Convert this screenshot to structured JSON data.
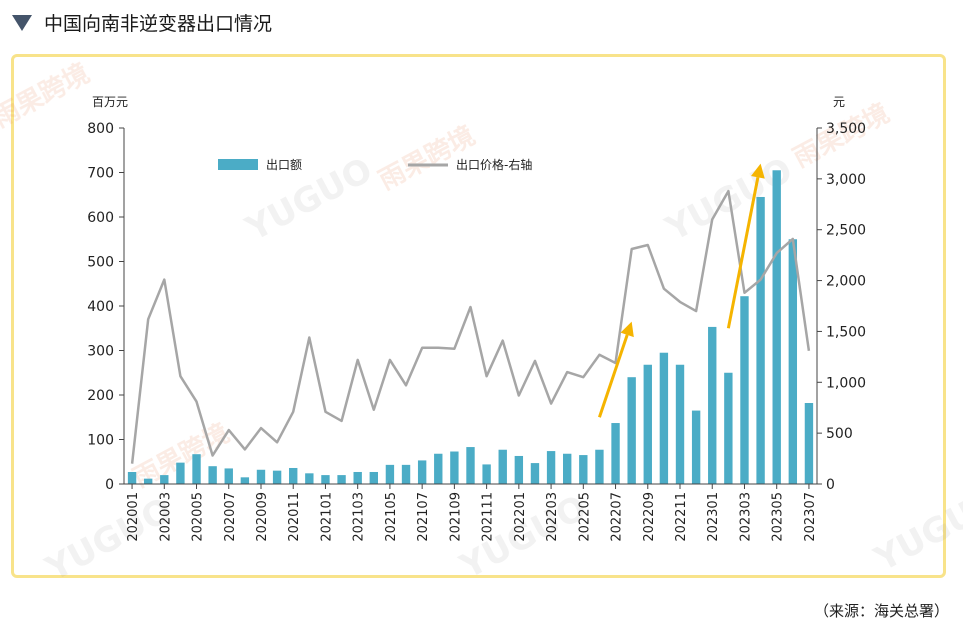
{
  "header": {
    "title": "中国向南非逆变器出口情况"
  },
  "source": "（来源：海关总署）",
  "watermark": {
    "latin": "YUGUO",
    "cn": "雨果跨境"
  },
  "colors": {
    "bar": "#4bacc6",
    "line": "#a6a6a6",
    "arrow": "#f5b400",
    "frame": "#f8e38a"
  },
  "chart_data": {
    "type": "bar+line",
    "left_axis_unit": "百万元",
    "right_axis_unit": "元",
    "left_ylim": [
      0,
      800
    ],
    "right_ylim": [
      0,
      3500
    ],
    "left_ticks": [
      0,
      100,
      200,
      300,
      400,
      500,
      600,
      700,
      800
    ],
    "left_tick_labels": [
      "0",
      "100",
      "200",
      "300",
      "400",
      "500",
      "600",
      "700",
      "800"
    ],
    "right_ticks": [
      0,
      500,
      1000,
      1500,
      2000,
      2500,
      3000,
      3500
    ],
    "right_tick_labels": [
      "0",
      "500",
      "1,000",
      "1,500",
      "2,000",
      "2,500",
      "3,000",
      "3,500"
    ],
    "categories": [
      "202001",
      "202002",
      "202003",
      "202004",
      "202005",
      "202006",
      "202007",
      "202008",
      "202009",
      "202010",
      "202011",
      "202012",
      "202101",
      "202102",
      "202103",
      "202104",
      "202105",
      "202106",
      "202107",
      "202108",
      "202109",
      "202110",
      "202111",
      "202112",
      "202201",
      "202202",
      "202203",
      "202204",
      "202205",
      "202206",
      "202207",
      "202208",
      "202209",
      "202210",
      "202211",
      "202212",
      "202301",
      "202302",
      "202303",
      "202304",
      "202305",
      "202306",
      "202307"
    ],
    "x_tick_labels": [
      "202001",
      "202003",
      "202005",
      "202007",
      "202009",
      "202011",
      "202101",
      "202103",
      "202105",
      "202107",
      "202109",
      "202111",
      "202201",
      "202203",
      "202205",
      "202207",
      "202209",
      "202211",
      "202301",
      "202303",
      "202305",
      "202307"
    ],
    "legend": [
      "出口额",
      "出口价格-右轴"
    ],
    "series": [
      {
        "name": "出口额",
        "type": "bar",
        "axis": "left",
        "values": [
          27,
          12,
          20,
          48,
          67,
          40,
          35,
          15,
          32,
          30,
          36,
          24,
          20,
          20,
          27,
          27,
          43,
          43,
          53,
          68,
          73,
          83,
          44,
          77,
          63,
          47,
          74,
          68,
          65,
          77,
          137,
          240,
          268,
          295,
          268,
          165,
          353,
          250,
          422,
          645,
          705,
          550,
          182
        ]
      },
      {
        "name": "出口价格-右轴",
        "type": "line",
        "axis": "right",
        "values": [
          200,
          1620,
          2010,
          1060,
          810,
          280,
          530,
          340,
          550,
          410,
          710,
          1440,
          710,
          620,
          1220,
          730,
          1220,
          970,
          1340,
          1340,
          1330,
          1740,
          1060,
          1410,
          870,
          1210,
          790,
          1100,
          1050,
          1270,
          1190,
          2310,
          2350,
          1920,
          1790,
          1700,
          2600,
          2880,
          1880,
          2010,
          2270,
          2410,
          1310
        ]
      }
    ],
    "annotations": [
      {
        "type": "arrow",
        "from_category": "202206",
        "from_value_left": 150,
        "to_category": "202208",
        "to_value_left": 365
      },
      {
        "type": "arrow",
        "from_category": "202302",
        "from_value_left": 350,
        "to_category": "202304",
        "to_value_left": 720
      }
    ]
  }
}
